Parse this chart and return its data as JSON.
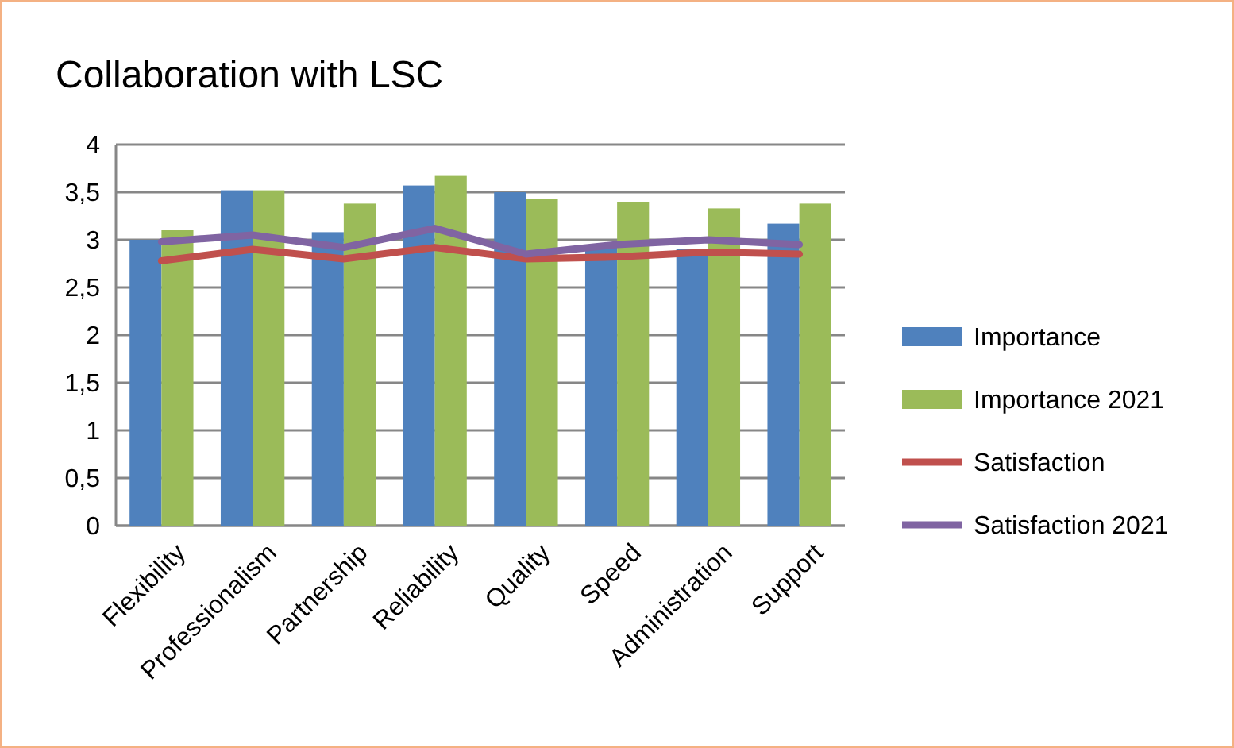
{
  "chart_data": {
    "type": "bar",
    "title": "Collaboration with LSC",
    "categories": [
      "Flexibility",
      "Professionalism",
      "Partnership",
      "Reliability",
      "Quality",
      "Speed",
      "Administration",
      "Support"
    ],
    "series": [
      {
        "name": "Importance",
        "color": "#4f81bd",
        "values": [
          3.0,
          3.52,
          3.08,
          3.57,
          3.5,
          2.95,
          2.9,
          3.17
        ]
      },
      {
        "name": "Importance 2021",
        "color": "#9bbb59",
        "values": [
          3.1,
          3.52,
          3.38,
          3.67,
          3.43,
          3.4,
          3.33,
          3.38
        ]
      },
      {
        "name": "Satisfaction",
        "type": "line",
        "color": "#c0504d",
        "values": [
          2.78,
          2.9,
          2.8,
          2.92,
          2.8,
          2.82,
          2.87,
          2.85
        ]
      },
      {
        "name": "Satisfaction 2021",
        "type": "line",
        "color": "#8064a2",
        "values": [
          2.98,
          3.05,
          2.92,
          3.12,
          2.85,
          2.95,
          3.0,
          2.95
        ]
      }
    ],
    "ylim": [
      0,
      4
    ],
    "yticks": [
      0,
      {
        "value": 0.5,
        "label": "0,5"
      },
      1,
      {
        "value": 1.5,
        "label": "1,5"
      },
      2,
      {
        "value": 2.5,
        "label": "2,5"
      },
      3,
      {
        "value": 3.5,
        "label": "3,5"
      },
      4
    ],
    "grid": "y",
    "legend": "right",
    "marker": "none"
  }
}
